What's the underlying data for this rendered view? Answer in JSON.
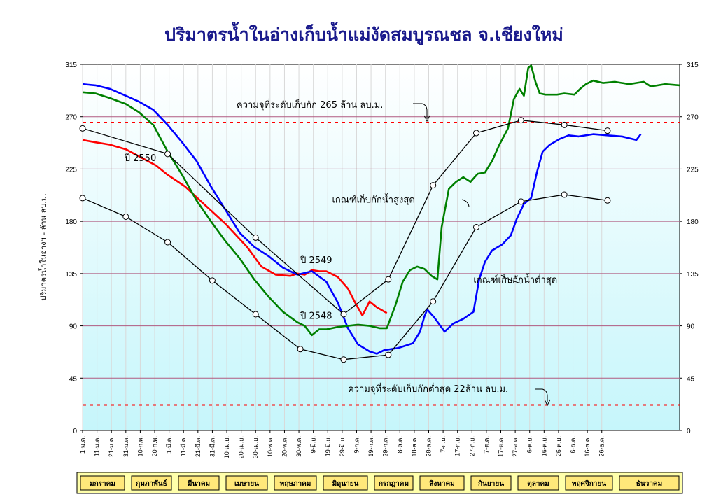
{
  "chart_data": {
    "type": "line",
    "title": "ปริมาตรน้ำในอ่างเก็บน้ำแม่งัดสมบูรณชล จ.เชียงใหม่",
    "ylabel": "ปริมาตรน้ำในอ่างฯ - ล้าน ลบ.ม.",
    "ylim": [
      0,
      315
    ],
    "yticks": [
      0,
      45,
      90,
      135,
      180,
      225,
      270,
      315
    ],
    "x_tick_labels": [
      "1-ม.ค.",
      "11-ม.ค.",
      "21-ม.ค.",
      "31-ม.ค.",
      "10-ก.พ.",
      "20-ก.พ.",
      "1-มี.ค.",
      "11-มี.ค.",
      "21-มี.ค.",
      "31-มี.ค.",
      "10-เม.ย.",
      "20-เม.ย.",
      "30-เม.ย.",
      "10-พ.ค.",
      "20-พ.ค.",
      "30-พ.ค.",
      "9-มิ.ย.",
      "19-มิ.ย.",
      "29-มิ.ย.",
      "9-ก.ค.",
      "19-ก.ค.",
      "29-ก.ค.",
      "8-ส.ค.",
      "18-ส.ค.",
      "28-ส.ค.",
      "7-ก.ย.",
      "17-ก.ย.",
      "27-ก.ย.",
      "7-ต.ค.",
      "17-ต.ค.",
      "27-ต.ค.",
      "6-พ.ย.",
      "16-พ.ย.",
      "26-พ.ย.",
      "6-ธ.ค.",
      "16-ธ.ค.",
      "26-ธ.ค."
    ],
    "x_day_range": [
      1,
      365
    ],
    "months": [
      "มกราคม",
      "กุมภาพันธ์",
      "มีนาคม",
      "เมษายน",
      "พฤษภาคม",
      "มิถุนายน",
      "กรกฎาคม",
      "สิงหาคม",
      "กันยายน",
      "ตุลาคม",
      "พฤศจิกายน",
      "ธันวาคม"
    ],
    "reference_lines": [
      {
        "value": 265,
        "label": "ความจุที่ระดับเก็บกัก 265 ล้าน ลบ.ม.",
        "color": "#ff0000"
      },
      {
        "value": 22,
        "label": "ความจุที่ระดับเก็บกักต่ำสุด 22ล้าน ลบ.ม.",
        "color": "#ff0000"
      }
    ],
    "series": [
      {
        "name": "ปี 2550",
        "color": "#ff0000",
        "points": [
          [
            1,
            250
          ],
          [
            10,
            248
          ],
          [
            20,
            246
          ],
          [
            31,
            242
          ],
          [
            40,
            236
          ],
          [
            52,
            228
          ],
          [
            60,
            220
          ],
          [
            72,
            210
          ],
          [
            85,
            195
          ],
          [
            100,
            178
          ],
          [
            115,
            158
          ],
          [
            125,
            141
          ],
          [
            135,
            134
          ],
          [
            145,
            133
          ],
          [
            150,
            135
          ],
          [
            155,
            134
          ],
          [
            160,
            138
          ],
          [
            165,
            137
          ],
          [
            170,
            137
          ],
          [
            178,
            132
          ],
          [
            185,
            122
          ],
          [
            190,
            110
          ],
          [
            195,
            99
          ],
          [
            198,
            106
          ],
          [
            200,
            111
          ],
          [
            205,
            106
          ],
          [
            212,
            101
          ]
        ]
      },
      {
        "name": "ปี 2549",
        "color": "#0000ff",
        "points": [
          [
            1,
            298
          ],
          [
            10,
            297
          ],
          [
            20,
            294
          ],
          [
            31,
            288
          ],
          [
            40,
            283
          ],
          [
            50,
            276
          ],
          [
            60,
            263
          ],
          [
            70,
            248
          ],
          [
            80,
            232
          ],
          [
            90,
            210
          ],
          [
            100,
            190
          ],
          [
            110,
            170
          ],
          [
            120,
            158
          ],
          [
            130,
            150
          ],
          [
            140,
            140
          ],
          [
            150,
            134
          ],
          [
            160,
            137
          ],
          [
            170,
            128
          ],
          [
            178,
            110
          ],
          [
            185,
            88
          ],
          [
            192,
            74
          ],
          [
            200,
            68
          ],
          [
            205,
            66
          ],
          [
            210,
            69
          ],
          [
            220,
            71
          ],
          [
            230,
            75
          ],
          [
            235,
            85
          ],
          [
            238,
            98
          ],
          [
            240,
            104
          ],
          [
            245,
            97
          ],
          [
            252,
            85
          ],
          [
            258,
            92
          ],
          [
            265,
            96
          ],
          [
            272,
            102
          ],
          [
            276,
            130
          ],
          [
            280,
            145
          ],
          [
            285,
            155
          ],
          [
            292,
            160
          ],
          [
            298,
            168
          ],
          [
            302,
            182
          ],
          [
            307,
            195
          ],
          [
            312,
            200
          ],
          [
            316,
            222
          ],
          [
            320,
            240
          ],
          [
            325,
            246
          ],
          [
            332,
            251
          ],
          [
            338,
            254
          ],
          [
            345,
            253
          ],
          [
            355,
            255
          ],
          [
            365,
            254
          ],
          [
            375,
            253
          ],
          [
            385,
            250
          ],
          [
            388,
            255
          ]
        ]
      },
      {
        "name": "ปี 2548",
        "color": "#008000",
        "points": [
          [
            1,
            291
          ],
          [
            10,
            290
          ],
          [
            20,
            286
          ],
          [
            31,
            281
          ],
          [
            40,
            274
          ],
          [
            50,
            263
          ],
          [
            60,
            240
          ],
          [
            70,
            220
          ],
          [
            80,
            198
          ],
          [
            90,
            180
          ],
          [
            100,
            163
          ],
          [
            110,
            148
          ],
          [
            120,
            130
          ],
          [
            130,
            115
          ],
          [
            140,
            102
          ],
          [
            150,
            93
          ],
          [
            155,
            90
          ],
          [
            160,
            82
          ],
          [
            165,
            87
          ],
          [
            170,
            87
          ],
          [
            178,
            89
          ],
          [
            185,
            90
          ],
          [
            192,
            91
          ],
          [
            200,
            90
          ],
          [
            207,
            88
          ],
          [
            212,
            88
          ],
          [
            218,
            108
          ],
          [
            223,
            128
          ],
          [
            228,
            138
          ],
          [
            233,
            141
          ],
          [
            238,
            139
          ],
          [
            243,
            133
          ],
          [
            247,
            130
          ],
          [
            250,
            175
          ],
          [
            255,
            208
          ],
          [
            260,
            214
          ],
          [
            265,
            218
          ],
          [
            270,
            214
          ],
          [
            275,
            221
          ],
          [
            280,
            222
          ],
          [
            285,
            232
          ],
          [
            290,
            246
          ],
          [
            296,
            260
          ],
          [
            300,
            285
          ],
          [
            304,
            294
          ],
          [
            307,
            288
          ],
          [
            310,
            312
          ],
          [
            312,
            314
          ],
          [
            315,
            300
          ],
          [
            318,
            290
          ],
          [
            322,
            289
          ],
          [
            330,
            289
          ],
          [
            335,
            290
          ],
          [
            342,
            289
          ],
          [
            346,
            294
          ],
          [
            350,
            298
          ],
          [
            355,
            301
          ],
          [
            362,
            299
          ],
          [
            370,
            300
          ],
          [
            380,
            298
          ],
          [
            390,
            300
          ],
          [
            395,
            296
          ],
          [
            405,
            298
          ],
          [
            415,
            297
          ]
        ]
      },
      {
        "name": "เกณฑ์เก็บกักน้ำสูงสุด",
        "color": "#000000",
        "marker": "circle",
        "points": [
          [
            1,
            260
          ],
          [
            60,
            238
          ],
          [
            121,
            166
          ],
          [
            182,
            100
          ],
          [
            213,
            130
          ],
          [
            244,
            211
          ],
          [
            274,
            256
          ],
          [
            305,
            267
          ],
          [
            335,
            263
          ],
          [
            365,
            258
          ]
        ]
      },
      {
        "name": "เกณฑ์เก็บกักน้ำต่ำสุด",
        "color": "#000000",
        "marker": "circle",
        "points": [
          [
            1,
            200
          ],
          [
            31,
            184
          ],
          [
            60,
            162
          ],
          [
            91,
            129
          ],
          [
            121,
            100
          ],
          [
            152,
            70
          ],
          [
            182,
            61
          ],
          [
            213,
            65
          ],
          [
            244,
            111
          ],
          [
            274,
            175
          ],
          [
            305,
            197
          ],
          [
            335,
            203
          ],
          [
            365,
            198
          ]
        ]
      }
    ],
    "annotations": [
      {
        "text": "ปี 2550",
        "x": 30,
        "y": 232
      },
      {
        "text": "ปี 2549",
        "x": 152,
        "y": 144
      },
      {
        "text": "ปี 2548",
        "x": 152,
        "y": 96
      },
      {
        "text": "เกณฑ์เก็บกักน้ำสูงสุด",
        "x": 174,
        "y": 196
      },
      {
        "text": "เกณฑ์เก็บกักน้ำต่ำสุด",
        "x": 272,
        "y": 127
      }
    ],
    "grid": true,
    "legend": "none"
  }
}
